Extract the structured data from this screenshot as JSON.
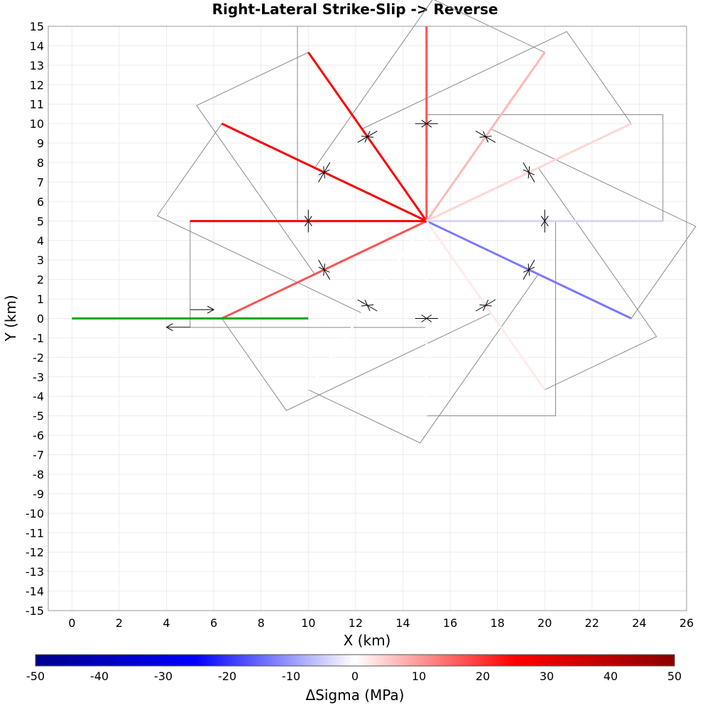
{
  "chart_data": {
    "type": "line",
    "title": "Right-Lateral Strike-Slip -> Reverse",
    "xlabel": "X (km)",
    "ylabel": "Y (km)",
    "xlim": [
      -1,
      26
    ],
    "ylim": [
      -15,
      15
    ],
    "xticks": [
      "0",
      "2",
      "4",
      "6",
      "8",
      "10",
      "12",
      "14",
      "16",
      "18",
      "20",
      "22",
      "24",
      "26"
    ],
    "yticks": [
      "-15",
      "-14",
      "-13",
      "-12",
      "-11",
      "-10",
      "-9",
      "-8",
      "-7",
      "-6",
      "-5",
      "-4",
      "-3",
      "-2",
      "-1",
      "0",
      "1",
      "2",
      "3",
      "4",
      "5",
      "6",
      "7",
      "8",
      "9",
      "10",
      "11",
      "12",
      "13",
      "14",
      "15"
    ],
    "grid": true,
    "source_fault": {
      "color": "#00aa00",
      "points": [
        [
          0,
          0
        ],
        [
          10,
          0
        ]
      ]
    },
    "source_arrows": [
      {
        "x1": 5,
        "y1": 0.45,
        "x2": 6,
        "y2": 0.45
      },
      {
        "x1": 5,
        "y1": -0.45,
        "x2": 4,
        "y2": -0.45
      }
    ],
    "receiver_faults": [
      {
        "angle_deg": 0,
        "end": [
          25.0,
          5.0
        ],
        "delta_sigma": -4
      },
      {
        "angle_deg": -30,
        "end": [
          23.66,
          0.0
        ],
        "delta_sigma": -13
      },
      {
        "angle_deg": -60,
        "end": [
          20.0,
          -3.66
        ],
        "delta_sigma": 2
      },
      {
        "angle_deg": -90,
        "end": [
          15.0,
          -5.0
        ],
        "delta_sigma": 0
      },
      {
        "angle_deg": -120,
        "end": [
          10.0,
          -3.66
        ],
        "delta_sigma": 0
      },
      {
        "angle_deg": -150,
        "end": [
          6.34,
          0.0
        ],
        "delta_sigma": 17
      },
      {
        "angle_deg": 180,
        "end": [
          5.0,
          5.0
        ],
        "delta_sigma": 26
      },
      {
        "angle_deg": 150,
        "end": [
          6.34,
          10.0
        ],
        "delta_sigma": 26
      },
      {
        "angle_deg": 120,
        "end": [
          10.0,
          13.66
        ],
        "delta_sigma": 26
      },
      {
        "angle_deg": 90,
        "end": [
          15.0,
          15.0
        ],
        "delta_sigma": 17
      },
      {
        "angle_deg": 60,
        "end": [
          20.0,
          13.66
        ],
        "delta_sigma": 7
      },
      {
        "angle_deg": 30,
        "end": [
          23.66,
          10.0
        ],
        "delta_sigma": 4
      }
    ],
    "receiver_center": [
      15,
      5
    ],
    "receiver_length_km": 10,
    "colorbar": {
      "label": "ΔSigma (MPa)",
      "min": -50,
      "max": 50,
      "ticks": [
        "-50",
        "-40",
        "-30",
        "-20",
        "-10",
        "0",
        "10",
        "20",
        "30",
        "40",
        "50"
      ],
      "colors": [
        "#00008b",
        "#0000ff",
        "#ffffff",
        "#ff0000",
        "#8b0000"
      ]
    }
  }
}
